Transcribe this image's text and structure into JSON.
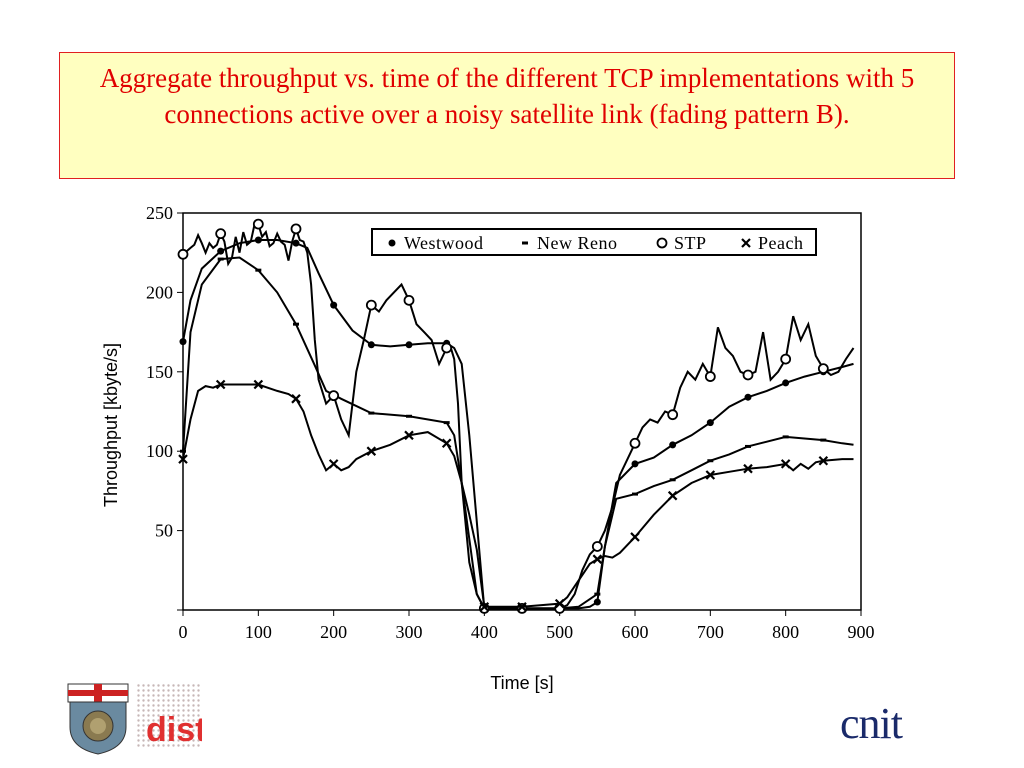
{
  "title": "Aggregate throughput vs. time of the different TCP implementations with 5 connections active over a noisy satellite link (fading pattern B).",
  "chart_data": {
    "type": "line",
    "xlabel": "Time [s]",
    "ylabel": "Throughput [kbyte/s]",
    "xlim": [
      0,
      900
    ],
    "ylim": [
      0,
      250
    ],
    "xticks": [
      0,
      100,
      200,
      300,
      400,
      500,
      600,
      700,
      800,
      900
    ],
    "yticks": [
      50,
      100,
      150,
      200,
      250
    ],
    "grid": false,
    "legend_position": "top-right",
    "series": [
      {
        "name": "Westwood",
        "marker": "dot",
        "x": [
          0,
          10,
          25,
          50,
          75,
          100,
          125,
          150,
          165,
          180,
          200,
          225,
          250,
          275,
          300,
          325,
          350,
          360,
          370,
          380,
          400,
          450,
          500,
          525,
          540,
          550,
          560,
          575,
          600,
          625,
          650,
          675,
          700,
          725,
          750,
          775,
          800,
          825,
          850,
          875,
          890
        ],
        "y": [
          169,
          195,
          215,
          226,
          231,
          233,
          233,
          231,
          228,
          212,
          192,
          176,
          167,
          166,
          167,
          168,
          168,
          165,
          155,
          110,
          1,
          1,
          1,
          1,
          2,
          5,
          40,
          80,
          92,
          96,
          104,
          110,
          118,
          128,
          134,
          138,
          143,
          147,
          150,
          153,
          155
        ]
      },
      {
        "name": "New Reno",
        "marker": "dash",
        "x": [
          0,
          10,
          25,
          50,
          75,
          100,
          125,
          150,
          175,
          190,
          210,
          250,
          300,
          350,
          360,
          370,
          390,
          400,
          450,
          500,
          525,
          550,
          560,
          575,
          600,
          625,
          650,
          675,
          700,
          725,
          750,
          775,
          800,
          825,
          850,
          875,
          890
        ],
        "y": [
          100,
          175,
          205,
          221,
          222,
          214,
          200,
          180,
          154,
          138,
          133,
          124,
          122,
          118,
          110,
          80,
          10,
          1,
          1,
          1,
          2,
          10,
          40,
          70,
          73,
          78,
          82,
          88,
          94,
          98,
          103,
          106,
          109,
          108,
          107,
          105,
          104
        ]
      },
      {
        "name": "STP",
        "marker": "circle",
        "x": [
          0,
          5,
          10,
          15,
          20,
          25,
          30,
          35,
          40,
          45,
          50,
          55,
          60,
          65,
          70,
          75,
          80,
          85,
          90,
          95,
          100,
          105,
          110,
          115,
          120,
          125,
          130,
          135,
          140,
          145,
          150,
          155,
          160,
          165,
          170,
          175,
          180,
          190,
          200,
          210,
          220,
          230,
          240,
          250,
          260,
          270,
          280,
          290,
          300,
          310,
          320,
          330,
          340,
          350,
          355,
          360,
          365,
          370,
          380,
          390,
          400,
          450,
          500,
          510,
          520,
          530,
          540,
          550,
          560,
          570,
          580,
          590,
          600,
          610,
          620,
          630,
          640,
          650,
          660,
          670,
          680,
          690,
          700,
          710,
          720,
          730,
          740,
          750,
          760,
          770,
          780,
          790,
          800,
          810,
          820,
          830,
          840,
          850,
          860,
          870,
          880,
          890
        ],
        "y": [
          224,
          226,
          228,
          230,
          236,
          231,
          225,
          231,
          228,
          230,
          237,
          232,
          218,
          222,
          235,
          225,
          238,
          230,
          232,
          243,
          243,
          235,
          238,
          229,
          231,
          237,
          232,
          230,
          220,
          232,
          240,
          233,
          232,
          225,
          205,
          170,
          145,
          130,
          135,
          120,
          110,
          150,
          170,
          192,
          188,
          195,
          200,
          205,
          195,
          180,
          175,
          170,
          155,
          165,
          166,
          158,
          130,
          80,
          30,
          10,
          1,
          1,
          1,
          3,
          10,
          25,
          35,
          40,
          50,
          65,
          85,
          95,
          105,
          115,
          120,
          118,
          125,
          123,
          140,
          150,
          145,
          155,
          147,
          178,
          165,
          160,
          150,
          148,
          150,
          175,
          145,
          150,
          158,
          185,
          170,
          180,
          160,
          152,
          148,
          150,
          158,
          165
        ]
      },
      {
        "name": "Peach",
        "marker": "cross",
        "x": [
          0,
          10,
          20,
          30,
          40,
          50,
          75,
          100,
          125,
          140,
          150,
          160,
          170,
          180,
          190,
          200,
          210,
          220,
          230,
          250,
          275,
          300,
          325,
          350,
          360,
          370,
          380,
          390,
          400,
          450,
          500,
          510,
          520,
          530,
          540,
          550,
          560,
          570,
          580,
          600,
          625,
          650,
          675,
          700,
          725,
          750,
          775,
          800,
          810,
          820,
          830,
          840,
          850,
          875,
          890
        ],
        "y": [
          95,
          120,
          138,
          141,
          140,
          142,
          142,
          142,
          138,
          136,
          133,
          125,
          110,
          98,
          88,
          92,
          88,
          90,
          95,
          100,
          104,
          110,
          112,
          105,
          97,
          80,
          60,
          38,
          2,
          2,
          4,
          8,
          15,
          22,
          29,
          32,
          34,
          33,
          36,
          46,
          60,
          72,
          80,
          85,
          87,
          89,
          90,
          92,
          88,
          92,
          89,
          93,
          94,
          95,
          95
        ]
      }
    ]
  }
}
